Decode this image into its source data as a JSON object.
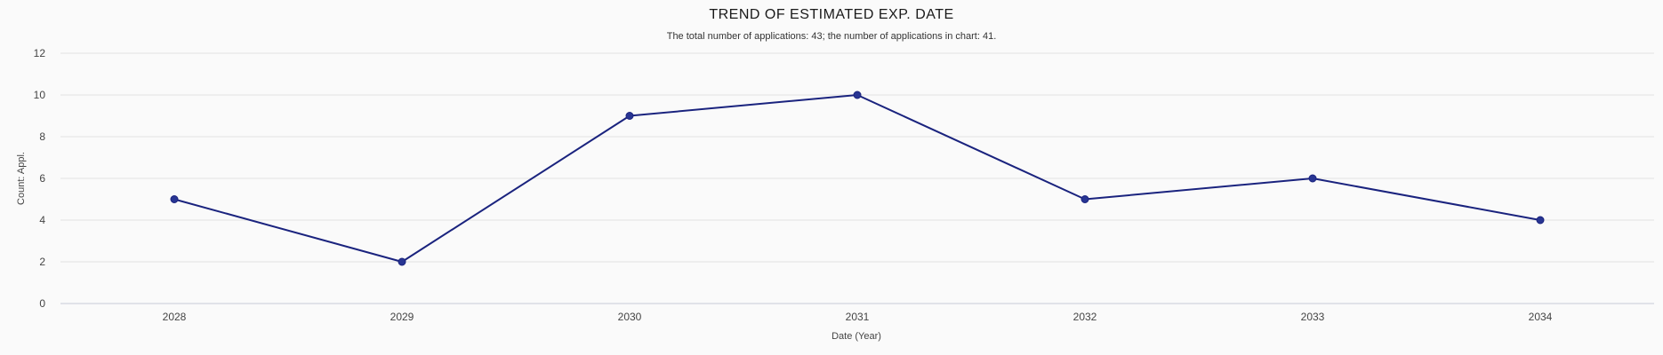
{
  "chart_data": {
    "type": "line",
    "title": "TREND OF ESTIMATED EXP. DATE",
    "subtitle": "The total number of applications: 43; the number of applications in chart: 41.",
    "xlabel": "Date (Year)",
    "ylabel": "Count: Appl.",
    "categories": [
      "2028",
      "2029",
      "2030",
      "2031",
      "2032",
      "2033",
      "2034"
    ],
    "values": [
      5,
      2,
      9,
      10,
      5,
      6,
      4
    ],
    "ylim": [
      0,
      12
    ],
    "yticks": [
      "0",
      "2",
      "4",
      "6",
      "8",
      "10",
      "12"
    ],
    "grid": true,
    "legend": "none",
    "colors": {
      "line": "#1a237e",
      "marker": "#283593"
    }
  }
}
